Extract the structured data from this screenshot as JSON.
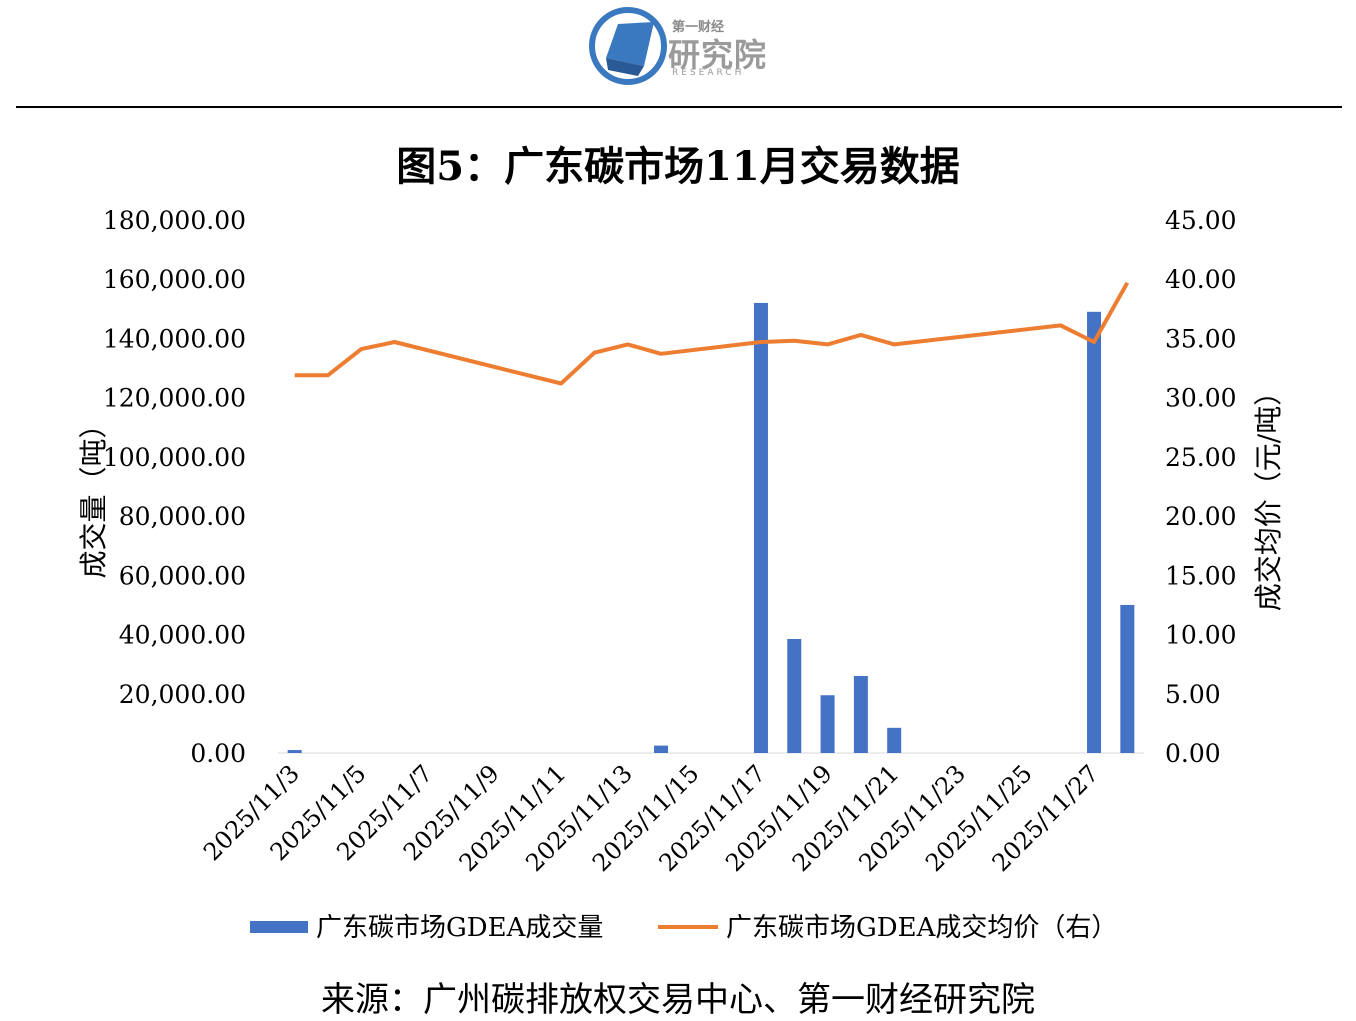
{
  "header": {
    "logo_sub": "第一财经",
    "logo_main": "研究院",
    "logo_en": "RESEARCH"
  },
  "title": "图5：广东碳市场11月交易数据",
  "source": "来源：广州碳排放权交易中心、第一财经研究院",
  "colors": {
    "bar": "#4472C4",
    "line": "#ED7D31"
  },
  "chart_data": {
    "type": "bar+line",
    "title": "图5：广东碳市场11月交易数据",
    "ylabel_left": "成交量（吨）",
    "ylabel_right": "成交均价（元/吨）",
    "ylim_left": [
      0,
      180000
    ],
    "ylim_right": [
      0,
      45
    ],
    "yticks_left": [
      "0.00",
      "20,000.00",
      "40,000.00",
      "60,000.00",
      "80,000.00",
      "100,000.00",
      "120,000.00",
      "140,000.00",
      "160,000.00",
      "180,000.00"
    ],
    "yticks_right": [
      "0.00",
      "5.00",
      "10.00",
      "15.00",
      "20.00",
      "25.00",
      "30.00",
      "35.00",
      "40.00",
      "45.00"
    ],
    "x_tick_labels": [
      "2025/11/3",
      "2025/11/5",
      "2025/11/7",
      "2025/11/9",
      "2025/11/11",
      "2025/11/13",
      "2025/11/15",
      "2025/11/17",
      "2025/11/19",
      "2025/11/21",
      "2025/11/23",
      "2025/11/25",
      "2025/11/27"
    ],
    "categories": [
      "2025/11/3",
      "2025/11/4",
      "2025/11/5",
      "2025/11/6",
      "2025/11/7",
      "2025/11/8",
      "2025/11/9",
      "2025/11/10",
      "2025/11/11",
      "2025/11/12",
      "2025/11/13",
      "2025/11/14",
      "2025/11/15",
      "2025/11/16",
      "2025/11/17",
      "2025/11/18",
      "2025/11/19",
      "2025/11/20",
      "2025/11/21",
      "2025/11/22",
      "2025/11/23",
      "2025/11/24",
      "2025/11/25",
      "2025/11/26",
      "2025/11/27",
      "2025/11/28"
    ],
    "grid": false,
    "legend_position": "bottom",
    "series": [
      {
        "name": "广东碳市场GDEA成交量",
        "type": "bar",
        "axis": "left",
        "values": [
          1000,
          0,
          0,
          0,
          0,
          0,
          0,
          0,
          0,
          0,
          0,
          2500,
          0,
          0,
          152000,
          38500,
          19500,
          26000,
          8500,
          0,
          0,
          0,
          0,
          0,
          149000,
          50000
        ]
      },
      {
        "name": "广东碳市场GDEA成交均价（右）",
        "type": "line",
        "axis": "right",
        "values": [
          31.9,
          31.9,
          34.1,
          34.7,
          null,
          null,
          null,
          null,
          31.2,
          33.8,
          34.5,
          33.7,
          null,
          null,
          34.7,
          34.8,
          34.5,
          35.3,
          34.5,
          null,
          null,
          null,
          null,
          36.1,
          34.7,
          39.7
        ]
      }
    ]
  }
}
